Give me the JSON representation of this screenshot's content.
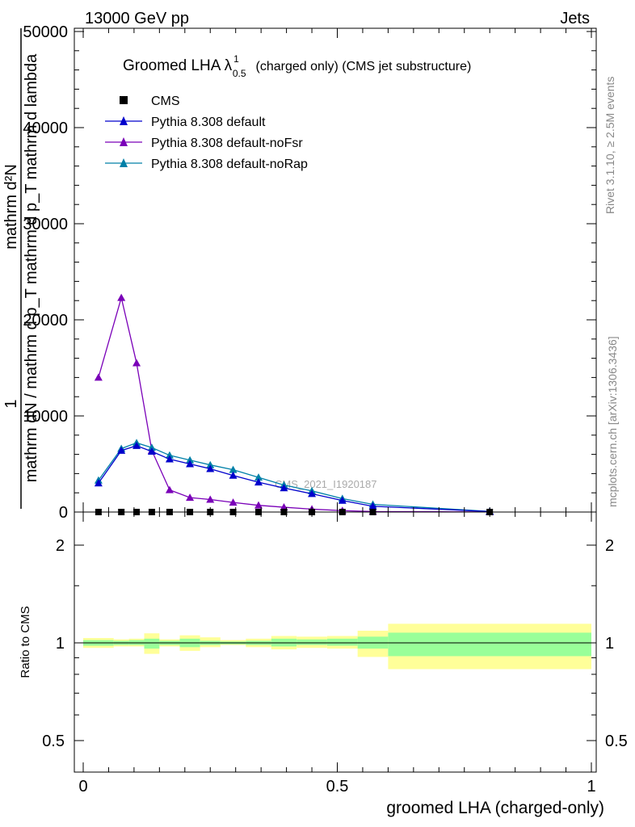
{
  "header": {
    "left": "13000 GeV pp",
    "right": "Jets"
  },
  "side_labels": {
    "rivet": "Rivet 3.1.10, ≥ 2.5M events",
    "mcplots": "mcplots.cern.ch [arXiv:1306.3436]"
  },
  "watermark": "CMS_2021_I1920187",
  "colors": {
    "cms": "#000000",
    "default": "#0000cc",
    "noFsr": "#7a00b8",
    "noRap": "#0080a8",
    "band_inner": "#99ff99",
    "band_outer": "#ffff99"
  },
  "chart_data": [
    {
      "type": "line",
      "title": "Groomed LHA λ",
      "title_sup": "1",
      "title_sub": "0.5",
      "title_rest": "(charged only) (CMS jet substructure)",
      "ylabel_line1": "1",
      "ylabel_line2": "mathrm d²N",
      "ylabel_line3": "mathrm dN / mathrm d p_T mathrm d p_T mathrm d lambda",
      "ylim": [
        0,
        50000
      ],
      "yticks": [
        0,
        10000,
        20000,
        30000,
        40000,
        50000
      ],
      "ytick_labels": [
        "0",
        "10000",
        "20000",
        "30000",
        "40000",
        "50000"
      ],
      "xlim": [
        -0.02,
        1.0
      ],
      "legend_placement": "top-left",
      "series": [
        {
          "name": "CMS",
          "marker": "square",
          "x": [
            0.03,
            0.075,
            0.105,
            0.135,
            0.17,
            0.21,
            0.25,
            0.295,
            0.345,
            0.395,
            0.45,
            0.51,
            0.57,
            0.8
          ],
          "values": [
            0,
            0,
            0,
            0,
            0,
            0,
            0,
            0,
            0,
            0,
            0,
            0,
            0,
            0
          ]
        },
        {
          "name": "Pythia 8.308 default",
          "marker": "triangle",
          "x": [
            0.03,
            0.075,
            0.105,
            0.135,
            0.17,
            0.21,
            0.25,
            0.295,
            0.345,
            0.395,
            0.45,
            0.51,
            0.57,
            0.8
          ],
          "values": [
            3000,
            6400,
            6900,
            6300,
            5500,
            5000,
            4500,
            3800,
            3100,
            2500,
            1900,
            1200,
            600,
            50
          ]
        },
        {
          "name": "Pythia 8.308 default-noFsr",
          "marker": "triangle",
          "x": [
            0.03,
            0.075,
            0.105,
            0.135,
            0.17,
            0.21,
            0.25,
            0.295,
            0.345,
            0.395,
            0.45,
            0.51,
            0.57,
            0.8
          ],
          "values": [
            14000,
            22300,
            15500,
            6400,
            2300,
            1500,
            1300,
            1000,
            700,
            500,
            300,
            150,
            50,
            10
          ]
        },
        {
          "name": "Pythia 8.308 default-noRap",
          "marker": "triangle",
          "x": [
            0.03,
            0.075,
            0.105,
            0.135,
            0.17,
            0.21,
            0.25,
            0.295,
            0.345,
            0.395,
            0.45,
            0.51,
            0.57,
            0.8
          ],
          "values": [
            3300,
            6600,
            7200,
            6700,
            5900,
            5400,
            4900,
            4400,
            3600,
            2800,
            2200,
            1400,
            800,
            60
          ]
        }
      ]
    },
    {
      "type": "area",
      "ylabel": "Ratio to CMS",
      "xlabel": "groomed LHA (charged-only)",
      "ylim": [
        0.35,
        2.35
      ],
      "yticks": [
        0.5,
        1,
        2
      ],
      "ytick_labels": [
        "0.5",
        "1",
        "2"
      ],
      "xlim": [
        -0.02,
        1.0
      ],
      "xticks": [
        0,
        0.5,
        1
      ],
      "xtick_labels": [
        "0",
        "0.5",
        "1"
      ],
      "reference_line": 1,
      "bin_edges": [
        0.0,
        0.06,
        0.09,
        0.12,
        0.15,
        0.19,
        0.23,
        0.27,
        0.32,
        0.37,
        0.42,
        0.48,
        0.54,
        0.6,
        1.0
      ],
      "inner_band": [
        [
          0.98,
          1.02
        ],
        [
          0.985,
          1.015
        ],
        [
          0.985,
          1.02
        ],
        [
          0.96,
          1.03
        ],
        [
          0.985,
          1.015
        ],
        [
          0.97,
          1.03
        ],
        [
          0.985,
          1.015
        ],
        [
          0.99,
          1.01
        ],
        [
          0.985,
          1.015
        ],
        [
          0.975,
          1.03
        ],
        [
          0.985,
          1.025
        ],
        [
          0.98,
          1.03
        ],
        [
          0.96,
          1.045
        ],
        [
          0.91,
          1.075
        ]
      ],
      "outer_band": [
        [
          0.965,
          1.035
        ],
        [
          0.975,
          1.025
        ],
        [
          0.975,
          1.03
        ],
        [
          0.925,
          1.07
        ],
        [
          0.975,
          1.025
        ],
        [
          0.945,
          1.055
        ],
        [
          0.97,
          1.04
        ],
        [
          0.985,
          1.02
        ],
        [
          0.97,
          1.03
        ],
        [
          0.955,
          1.05
        ],
        [
          0.965,
          1.045
        ],
        [
          0.96,
          1.05
        ],
        [
          0.905,
          1.09
        ],
        [
          0.83,
          1.145
        ]
      ]
    }
  ]
}
